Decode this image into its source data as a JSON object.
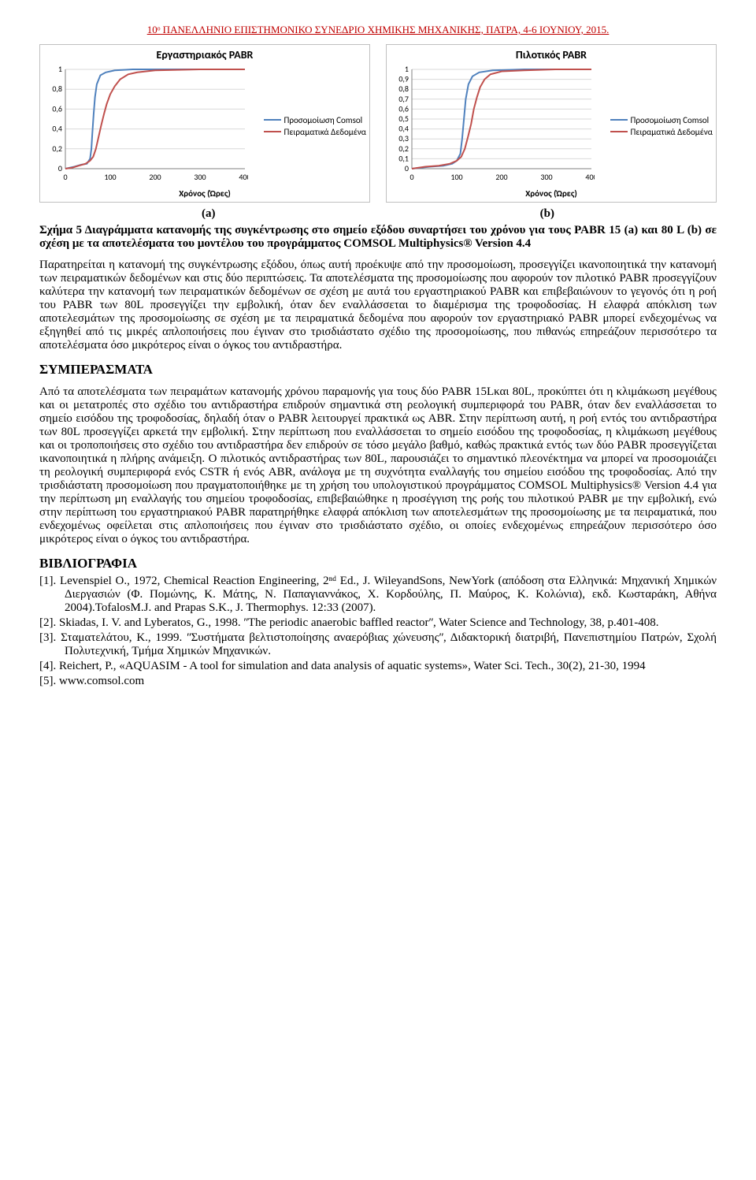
{
  "header": "10ᵒ ΠΑΝΕΛΛΗΝΙΟ ΕΠΙΣΤΗΜΟΝΙΚΟ ΣΥΝΕΔΡΙΟ ΧΗΜΙΚΗΣ ΜΗΧΑΝΙΚΗΣ, ΠΑΤΡΑ, 4-6 ΙΟΥΝΙΟΥ, 2015.",
  "charts": {
    "left": {
      "title": "Εργαστηριακός PABR",
      "colors": {
        "grid": "#d9d9d9",
        "axis": "#808080",
        "series1": "#4f81bd",
        "series2": "#c0504d"
      },
      "x": {
        "label": "Χρόνος (Ώρες)",
        "ticks": [
          0,
          100,
          200,
          300,
          400
        ],
        "min": 0,
        "max": 400
      },
      "y": {
        "ticks": [
          0,
          0.2,
          0.4,
          0.6,
          0.8,
          1
        ],
        "min": 0,
        "max": 1
      },
      "series1": {
        "name": "Προσομοίωση Comsol",
        "points": [
          [
            0,
            0
          ],
          [
            20,
            0.02
          ],
          [
            35,
            0.04
          ],
          [
            48,
            0.05
          ],
          [
            55,
            0.1
          ],
          [
            58,
            0.2
          ],
          [
            60,
            0.35
          ],
          [
            63,
            0.55
          ],
          [
            66,
            0.72
          ],
          [
            70,
            0.85
          ],
          [
            78,
            0.94
          ],
          [
            90,
            0.97
          ],
          [
            110,
            0.99
          ],
          [
            150,
            1
          ],
          [
            400,
            1
          ]
        ]
      },
      "series2": {
        "name": "Πειραματικά Δεδομένα",
        "points": [
          [
            0,
            0
          ],
          [
            15,
            0.01
          ],
          [
            30,
            0.03
          ],
          [
            45,
            0.05
          ],
          [
            55,
            0.08
          ],
          [
            62,
            0.12
          ],
          [
            68,
            0.2
          ],
          [
            74,
            0.32
          ],
          [
            80,
            0.44
          ],
          [
            86,
            0.55
          ],
          [
            92,
            0.65
          ],
          [
            100,
            0.75
          ],
          [
            110,
            0.83
          ],
          [
            122,
            0.9
          ],
          [
            140,
            0.95
          ],
          [
            160,
            0.97
          ],
          [
            200,
            0.99
          ],
          [
            300,
            1
          ],
          [
            400,
            1
          ]
        ]
      },
      "sublabel": "(a)"
    },
    "right": {
      "title": "Πιλοτικός PABR",
      "colors": {
        "grid": "#d9d9d9",
        "axis": "#808080",
        "series1": "#4f81bd",
        "series2": "#c0504d"
      },
      "x": {
        "label": "Χρόνος (Ώρες)",
        "ticks": [
          0,
          100,
          200,
          300,
          400
        ],
        "min": 0,
        "max": 400
      },
      "y": {
        "ticks": [
          0,
          0.1,
          0.2,
          0.3,
          0.4,
          0.5,
          0.6,
          0.7,
          0.8,
          0.9,
          1
        ],
        "min": 0,
        "max": 1
      },
      "series1": {
        "name": "Προσομοίωση Comsol",
        "points": [
          [
            0,
            0
          ],
          [
            40,
            0.02
          ],
          [
            70,
            0.03
          ],
          [
            90,
            0.05
          ],
          [
            100,
            0.08
          ],
          [
            108,
            0.15
          ],
          [
            112,
            0.3
          ],
          [
            116,
            0.5
          ],
          [
            120,
            0.7
          ],
          [
            126,
            0.85
          ],
          [
            135,
            0.93
          ],
          [
            150,
            0.97
          ],
          [
            180,
            0.99
          ],
          [
            250,
            1
          ],
          [
            400,
            1
          ]
        ]
      },
      "series2": {
        "name": "Πειραματικά Δεδομένα",
        "points": [
          [
            0,
            0
          ],
          [
            30,
            0.02
          ],
          [
            60,
            0.03
          ],
          [
            85,
            0.05
          ],
          [
            100,
            0.08
          ],
          [
            110,
            0.12
          ],
          [
            118,
            0.2
          ],
          [
            125,
            0.32
          ],
          [
            132,
            0.45
          ],
          [
            138,
            0.6
          ],
          [
            145,
            0.72
          ],
          [
            152,
            0.82
          ],
          [
            162,
            0.9
          ],
          [
            175,
            0.95
          ],
          [
            200,
            0.98
          ],
          [
            250,
            0.99
          ],
          [
            320,
            1
          ],
          [
            400,
            1
          ]
        ]
      },
      "sublabel": "(b)"
    }
  },
  "caption": "Σχήμα 5 Διαγράμματα κατανομής της συγκέντρωσης στο σημείο εξόδου συναρτήσει του χρόνου για τους PABR 15 (a) και 80 L (b) σε σχέση με τα αποτελέσματα του μοντέλου του προγράμματος COMSOL Multiphysics® Version 4.4",
  "para1": "Παρατηρείται η κατανομή της συγκέντρωσης εξόδου, όπως αυτή προέκυψε από την προσομοίωση, προσεγγίζει ικανοποιητικά την κατανομή των πειραματικών δεδομένων και στις δύο περιπτώσεις. Τα αποτελέσματα της προσομοίωσης που αφορούν τον πιλοτικό PABR προσεγγίζουν καλύτερα την κατανομή των πειραματικών δεδομένων σε σχέση με αυτά του εργαστηριακού PABR και επιβεβαιώνουν το γεγονός ότι η ροή του PABR των 80L προσεγγίζει την εμβολική, όταν δεν εναλλάσσεται το διαμέρισμα της τροφοδοσίας. Η ελαφρά απόκλιση των αποτελεσμάτων της προσομοίωσης σε σχέση με τα πειραματικά δεδομένα που αφορούν τον εργαστηριακό PABR μπορεί ενδεχομένως να εξηγηθεί από τις μικρές απλοποιήσεις που έγιναν στο τρισδιάστατο σχέδιο της προσομοίωσης, που πιθανώς επηρεάζουν περισσότερο τα αποτελέσματα όσο μικρότερος είναι ο όγκος του αντιδραστήρα.",
  "sec1_title": "ΣΥΜΠΕΡΑΣΜΑΤΑ",
  "sec1_para": "Από τα αποτελέσματα των πειραμάτων κατανομής χρόνου παραμονής για τους δύο PABR 15Lκαι 80L, προκύπτει ότι η κλιμάκωση μεγέθους και οι μετατροπές στο σχέδιο του αντιδραστήρα επιδρούν σημαντικά στη ρεολογική συμπεριφορά του PABR, όταν δεν εναλλάσσεται το σημείο εισόδου της τροφοδοσίας, δηλαδή όταν ο PABR λειτουργεί πρακτικά ως ABR. Στην περίπτωση αυτή, η ροή εντός του αντιδραστήρα των 80L προσεγγίζει αρκετά την εμβολική. Στην περίπτωση που εναλλάσσεται το σημείο εισόδου της τροφοδοσίας, η κλιμάκωση μεγέθους και οι τροποποιήσεις στο σχέδιο του αντιδραστήρα δεν επιδρούν σε τόσο μεγάλο βαθμό, καθώς πρακτικά εντός των δύο PABR προσεγγίζεται ικανοποιητικά η πλήρης ανάμειξη. Ο πιλοτικός αντιδραστήρας των 80L, παρουσιάζει το σημαντικό πλεονέκτημα να μπορεί να προσομοιάζει τη ρεολογική συμπεριφορά ενός CSTR ή ενός ABR, ανάλογα με τη συχνότητα εναλλαγής του σημείου εισόδου της τροφοδοσίας. Από την τρισδιάστατη προσομοίωση που πραγματοποιήθηκε με τη χρήση του υπολογιστικού προγράμματος COMSOL Multiphysics® Version 4.4 για την περίπτωση μη εναλλαγής του σημείου τροφοδοσίας, επιβεβαιώθηκε η προσέγγιση της ροής του πιλοτικού PABR με την εμβολική, ενώ στην περίπτωση του εργαστηριακού PABR παρατηρήθηκε ελαφρά απόκλιση των αποτελεσμάτων της προσομοίωσης με τα πειραματικά, που ενδεχομένως οφείλεται στις απλοποιήσεις που έγιναν στο τρισδιάστατο σχέδιο, οι οποίες ενδεχομένως επηρεάζουν περισσότερο όσο μικρότερος είναι ο όγκος του αντιδραστήρα.",
  "sec2_title": "ΒΙΒΛΙΟΓΡΑΦΙΑ",
  "refs": [
    "[1]. Levenspiel O., 1972, Chemical Reaction Engineering, 2ⁿᵈ Ed., J. WileyandSons, NewYork (απόδοση στα Ελληνικά: Μηχανική Χημικών Διεργασιών (Φ. Πομώνης, Κ. Μάτης, Ν. Παπαγιαννάκος, Χ. Κορδούλης, Π. Μαύρος, Κ. Κολώνια), εκδ. Κωσταράκη, Αθήνα 2004).TofalosM.J. and Prapas S.K., J. Thermophys. 12:33 (2007).",
    "[2]. Skiadas, I. V. and Lyberatos, G., 1998. ʺThe periodic anaerobic baffled reactorʺ, Water Science and Technology, 38, p.401-408.",
    "[3]. Σταματελάτου, Κ., 1999. ʺΣυστήματα βελτιστοποίησης αναερόβιας χώνευσηςʺ, Διδακτορική διατριβή, Πανεπιστημίου Πατρών, Σχολή Πολυτεχνική, Τμήμα Χημικών Μηχανικών.",
    "[4]. Reichert, P., «AQUASIM - A tool for simulation and data analysis of aquatic systems», Water Sci. Tech., 30(2), 21-30, 1994",
    "[5]. www.comsol.com"
  ]
}
